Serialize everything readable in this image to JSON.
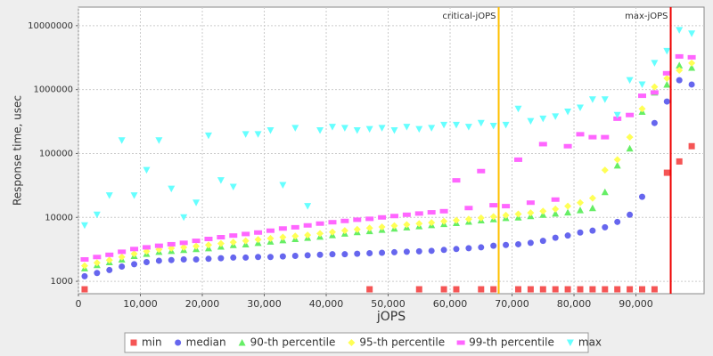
{
  "chart_data": {
    "type": "scatter",
    "x_label": "jOPS",
    "y_label": "Response time, usec",
    "log_y": true,
    "grid": true,
    "legend": "bottom",
    "xlim": [
      0,
      101000
    ],
    "ylim": [
      640,
      19500000
    ],
    "xticks": [
      {
        "value": 0,
        "label": "0"
      },
      {
        "value": 10000,
        "label": "10,000"
      },
      {
        "value": 20000,
        "label": "20,000"
      },
      {
        "value": 30000,
        "label": "30,000"
      },
      {
        "value": 40000,
        "label": "40,000"
      },
      {
        "value": 50000,
        "label": "50,000"
      },
      {
        "value": 60000,
        "label": "60,000"
      },
      {
        "value": 70000,
        "label": "70,000"
      },
      {
        "value": 80000,
        "label": "80,000"
      },
      {
        "value": 90000,
        "label": "90,000"
      }
    ],
    "yticks": [
      1000,
      10000,
      100000,
      1000000,
      10000000
    ],
    "markers": [
      {
        "label": "critical-jOPS",
        "value": 67840,
        "color": "#ffc000"
      },
      {
        "label": "max-jOPS",
        "value": 95610,
        "color": "#ee0000"
      }
    ],
    "x": [
      1000,
      3000,
      5000,
      7000,
      9000,
      11000,
      13000,
      15000,
      17000,
      19000,
      21000,
      23000,
      25000,
      27000,
      29000,
      31000,
      33000,
      35000,
      37000,
      39000,
      41000,
      43000,
      45000,
      47000,
      49000,
      51000,
      53000,
      55000,
      57000,
      59000,
      61000,
      63000,
      65000,
      67000,
      69000,
      71000,
      73000,
      75000,
      77000,
      79000,
      81000,
      83000,
      85000,
      87000,
      89000,
      91000,
      93000,
      95000,
      97000,
      99000
    ],
    "series": [
      {
        "name": "min",
        "color": "#f55555",
        "marker": "square",
        "values": [
          750,
          null,
          null,
          null,
          null,
          null,
          null,
          null,
          null,
          null,
          null,
          null,
          null,
          null,
          null,
          null,
          null,
          null,
          null,
          null,
          null,
          null,
          null,
          750,
          null,
          null,
          null,
          750,
          null,
          750,
          750,
          null,
          750,
          750,
          null,
          750,
          750,
          750,
          750,
          750,
          750,
          750,
          750,
          750,
          750,
          750,
          750,
          50000,
          75000,
          130000
        ]
      },
      {
        "name": "median",
        "color": "#6666ee",
        "marker": "circle",
        "values": [
          1200,
          1350,
          1500,
          1700,
          1850,
          2000,
          2100,
          2150,
          2200,
          2200,
          2250,
          2300,
          2350,
          2350,
          2400,
          2400,
          2450,
          2500,
          2550,
          2600,
          2650,
          2650,
          2700,
          2750,
          2800,
          2850,
          2900,
          2950,
          3000,
          3100,
          3200,
          3300,
          3400,
          3600,
          3700,
          3800,
          4000,
          4300,
          4800,
          5200,
          5800,
          6200,
          7000,
          8500,
          11000,
          21000,
          300000,
          650000,
          1400000,
          1200000
        ]
      },
      {
        "name": "90-th percentile",
        "color": "#66ee66",
        "marker": "triangle",
        "values": [
          1600,
          1800,
          2000,
          2200,
          2500,
          2700,
          2900,
          3000,
          3100,
          3200,
          3300,
          3500,
          3700,
          3800,
          4000,
          4200,
          4400,
          4600,
          4800,
          5000,
          5300,
          5600,
          5900,
          6100,
          6400,
          6700,
          7000,
          7300,
          7600,
          7900,
          8200,
          8600,
          9000,
          9400,
          9800,
          10000,
          10500,
          11000,
          11500,
          12000,
          13000,
          14000,
          25000,
          65000,
          120000,
          450000,
          900000,
          1200000,
          2400000,
          2200000
        ]
      },
      {
        "name": "95-th percentile",
        "color": "#ffff55",
        "marker": "diamond",
        "values": [
          1750,
          1950,
          2150,
          2400,
          2700,
          2950,
          3150,
          3300,
          3400,
          3550,
          3700,
          3900,
          4100,
          4300,
          4500,
          4700,
          4900,
          5100,
          5300,
          5600,
          5900,
          6200,
          6500,
          6800,
          7100,
          7400,
          7700,
          8000,
          8300,
          8700,
          9000,
          9400,
          9800,
          10300,
          10800,
          11300,
          11800,
          12500,
          13500,
          15000,
          17000,
          20000,
          55000,
          80000,
          180000,
          500000,
          1100000,
          1500000,
          2000000,
          2600000
        ]
      },
      {
        "name": "99-th percentile",
        "color": "#ff66ff",
        "marker": "wide",
        "values": [
          2200,
          2400,
          2600,
          2900,
          3200,
          3400,
          3600,
          3800,
          4000,
          4300,
          4600,
          4900,
          5200,
          5500,
          5800,
          6200,
          6700,
          7000,
          7500,
          8000,
          8400,
          8800,
          9200,
          9500,
          10000,
          10500,
          11000,
          11500,
          12000,
          12500,
          38000,
          14000,
          53000,
          15500,
          15000,
          80000,
          17000,
          140000,
          19000,
          130000,
          200000,
          180000,
          180000,
          350000,
          400000,
          800000,
          900000,
          1800000,
          3300000,
          3200000
        ]
      },
      {
        "name": "max",
        "color": "#66ffff",
        "marker": "down",
        "values": [
          7500,
          11000,
          22000,
          160000,
          22000,
          55000,
          160000,
          28000,
          10000,
          17000,
          190000,
          38000,
          30000,
          200000,
          200000,
          230000,
          32000,
          250000,
          15000,
          230000,
          260000,
          250000,
          230000,
          240000,
          250000,
          230000,
          260000,
          240000,
          250000,
          280000,
          280000,
          260000,
          300000,
          270000,
          280000,
          500000,
          320000,
          350000,
          380000,
          450000,
          520000,
          700000,
          700000,
          400000,
          1400000,
          1200000,
          2600000,
          4000000,
          8500000,
          7500000
        ]
      }
    ]
  }
}
